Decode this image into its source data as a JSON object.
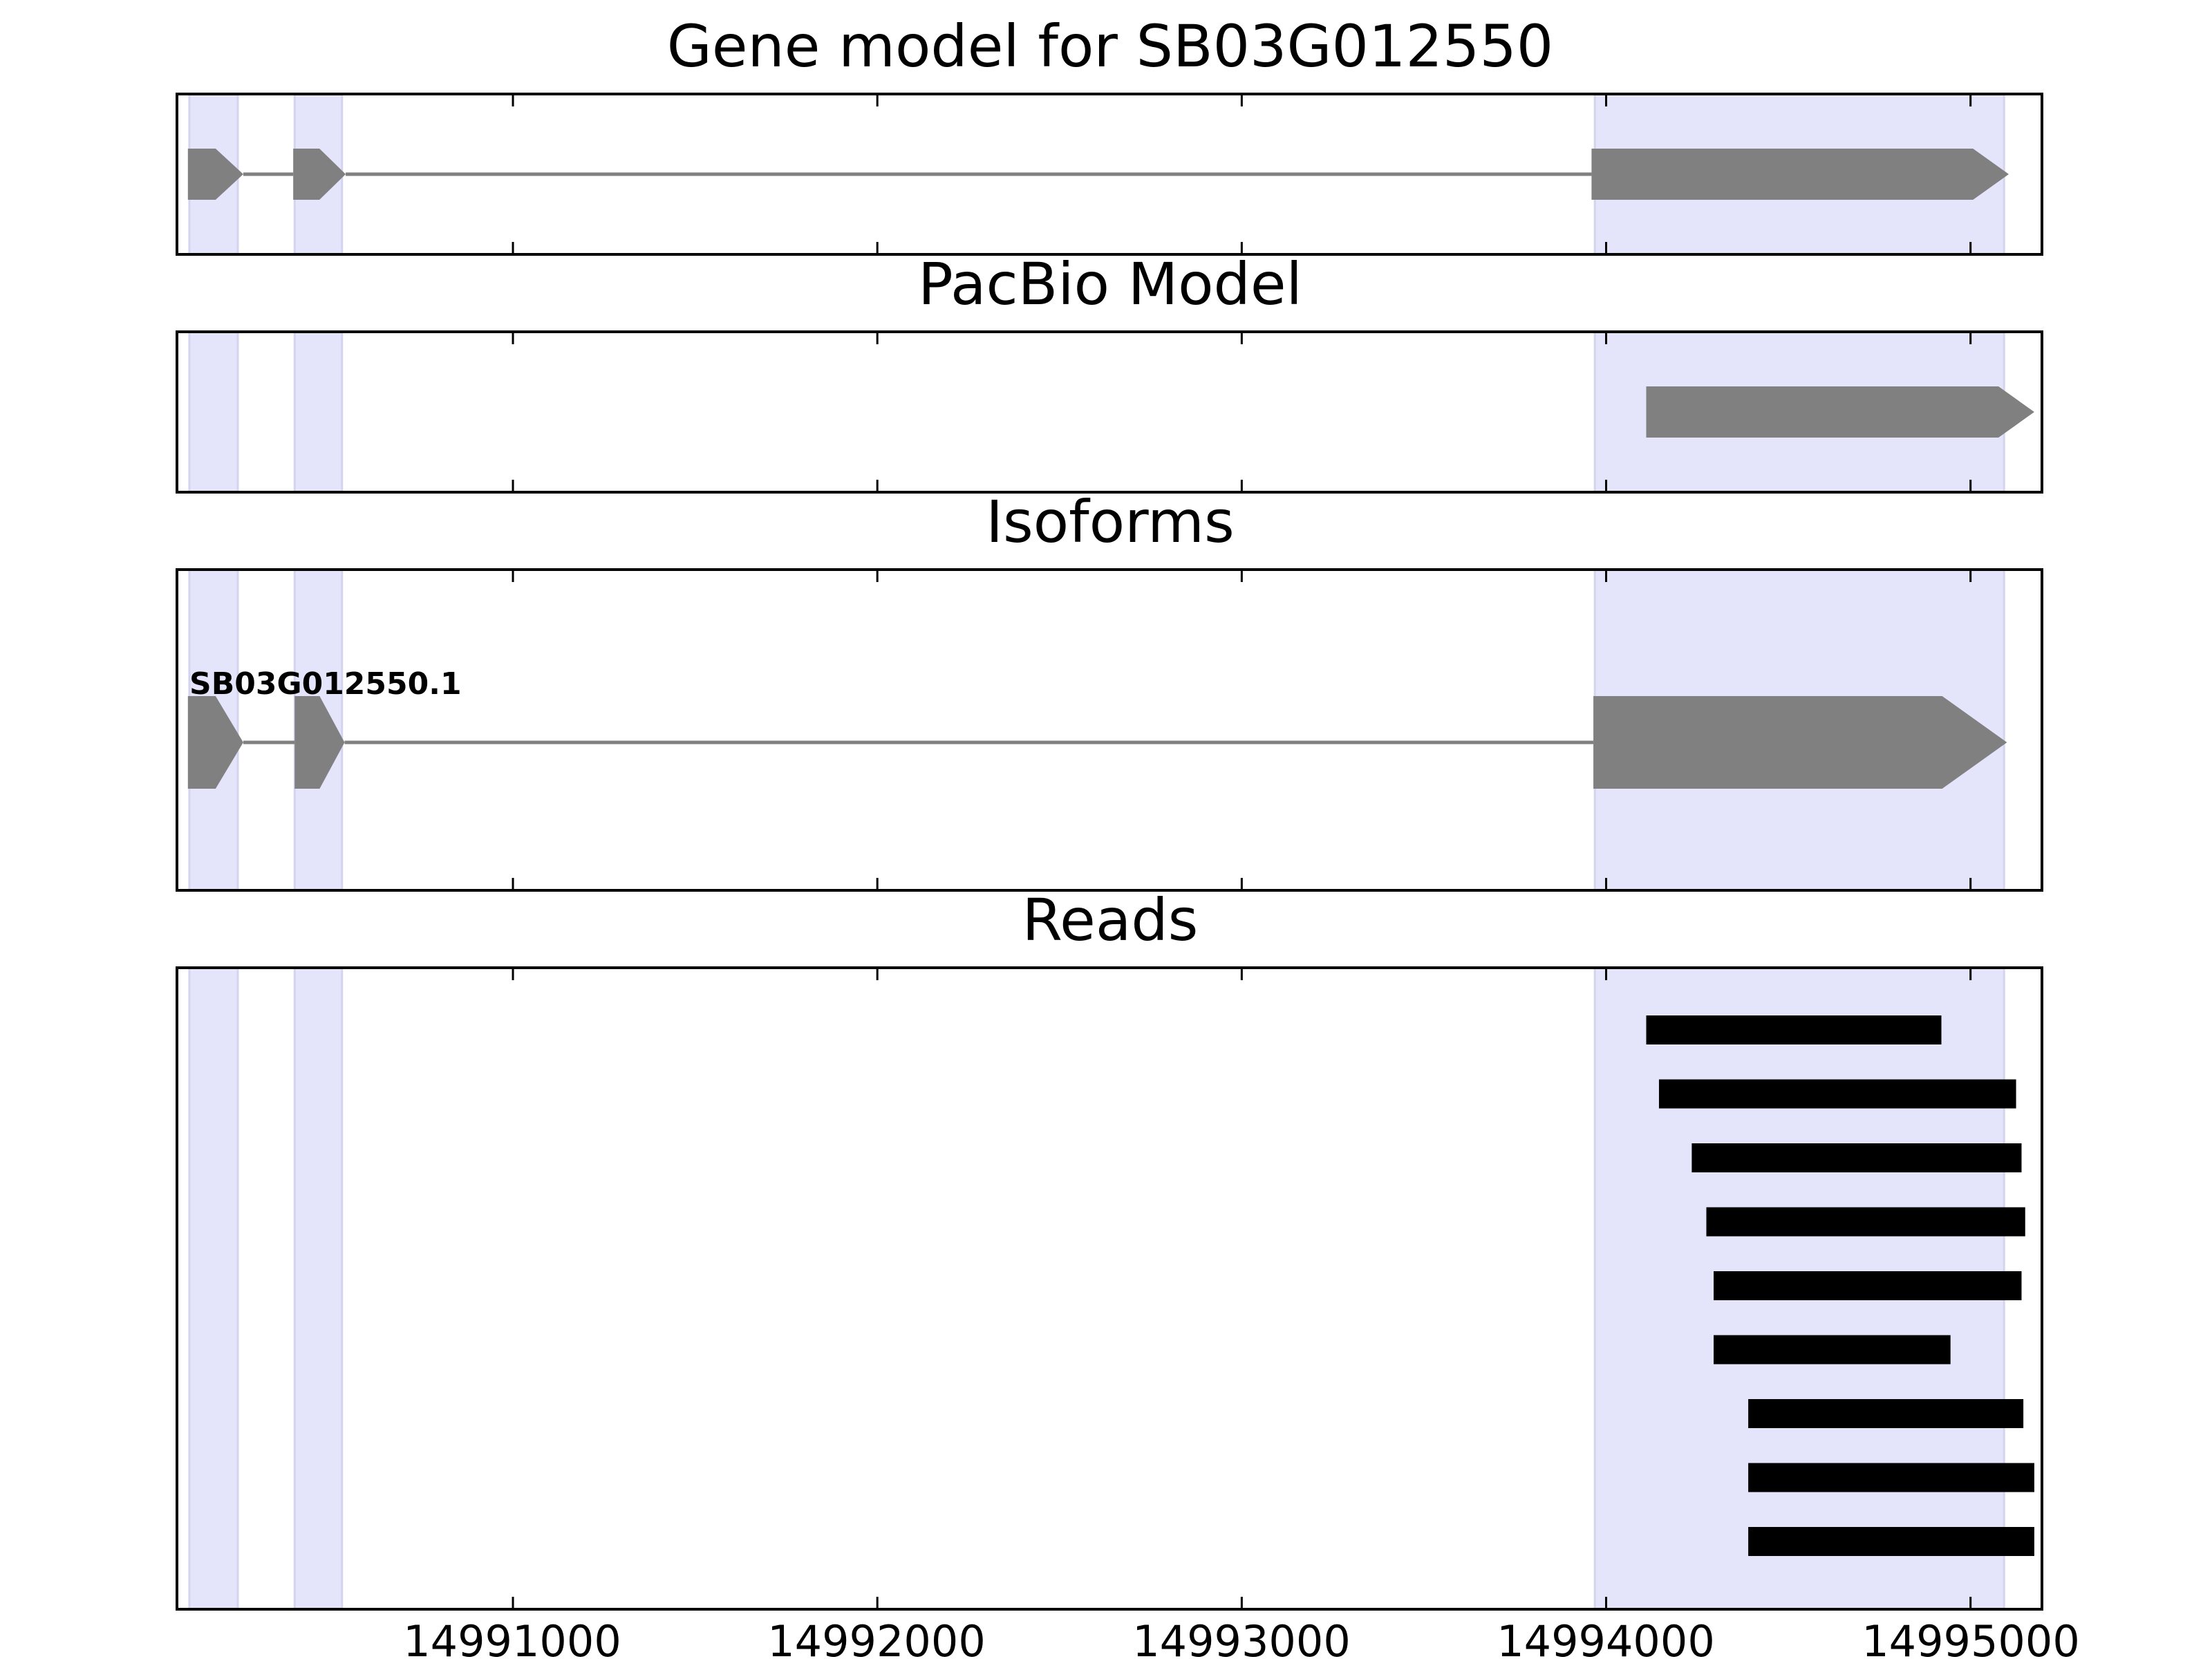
{
  "figure_title": "Gene model for SB03G012550",
  "chart_data": {
    "type": "gene-track",
    "xlim": [
      14990078,
      14995196
    ],
    "xticks": [
      14991000,
      14992000,
      14993000,
      14994000,
      14995000
    ],
    "xtick_labels": [
      "14991000",
      "14992000",
      "14993000",
      "14994000",
      "14995000"
    ],
    "exon_regions": [
      [
        14990112,
        14990245
      ],
      [
        14990401,
        14990531
      ],
      [
        14993969,
        14995092
      ]
    ],
    "colors": {
      "exon_shade": "#e4e4fb",
      "exon_shade_edge": "#d4d4ef",
      "gene_feature": "#808080",
      "read": "#000000",
      "frame": "#000000"
    },
    "panels": [
      {
        "key": "gene_model",
        "title": "Gene model for SB03G012550",
        "features": {
          "strand": "+",
          "exons": [
            [
              14990108,
              14990260
            ],
            [
              14990397,
              14990541
            ],
            [
              14993960,
              14995105
            ]
          ],
          "introns": [
            [
              14990260,
              14990397
            ],
            [
              14990541,
              14993960
            ]
          ]
        }
      },
      {
        "key": "pacbio_model",
        "title": "PacBio Model",
        "features": {
          "strand": "+",
          "exons": [
            [
              14994110,
              14995175
            ]
          ],
          "introns": []
        }
      },
      {
        "key": "isoforms",
        "title": "Isoforms",
        "isoform_label": "SB03G012550.1",
        "features": {
          "strand": "+",
          "exons": [
            [
              14990108,
              14990260
            ],
            [
              14990401,
              14990538
            ],
            [
              14993965,
              14995100
            ]
          ],
          "introns": [
            [
              14990260,
              14990401
            ],
            [
              14990538,
              14993965
            ]
          ]
        }
      },
      {
        "key": "reads",
        "title": "Reads",
        "reads": [
          [
            14994110,
            14994920
          ],
          [
            14994145,
            14995125
          ],
          [
            14994235,
            14995140
          ],
          [
            14994275,
            14995150
          ],
          [
            14994295,
            14995140
          ],
          [
            14994295,
            14994945
          ],
          [
            14994390,
            14995145
          ],
          [
            14994390,
            14995175
          ],
          [
            14994390,
            14995175
          ]
        ]
      }
    ]
  }
}
